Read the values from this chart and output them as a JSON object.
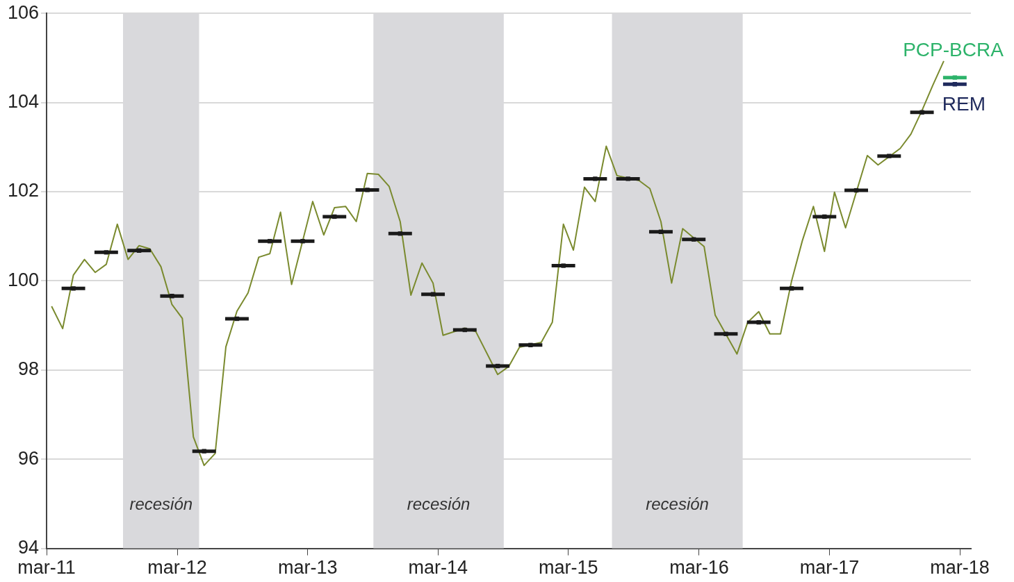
{
  "chart_data": {
    "type": "line",
    "xlim": [
      "2011-03",
      "2018-04"
    ],
    "xticks": [
      {
        "value": "2011-03",
        "label": "mar-11"
      },
      {
        "value": "2012-03",
        "label": "mar-12"
      },
      {
        "value": "2013-03",
        "label": "mar-13"
      },
      {
        "value": "2014-03",
        "label": "mar-14"
      },
      {
        "value": "2015-03",
        "label": "mar-15"
      },
      {
        "value": "2016-03",
        "label": "mar-16"
      },
      {
        "value": "2017-03",
        "label": "mar-17"
      },
      {
        "value": "2018-03",
        "label": "mar-18"
      }
    ],
    "ylim": [
      94,
      106
    ],
    "yticks": [
      94,
      96,
      98,
      100,
      102,
      104,
      106
    ],
    "grid": "y",
    "legend": false,
    "bands": [
      {
        "axis": "x",
        "from": "2011-10",
        "to": "2012-05",
        "label": "recesión",
        "color": "#d9d9dc"
      },
      {
        "axis": "x",
        "from": "2013-09",
        "to": "2014-09",
        "label": "recesión",
        "color": "#d9d9dc"
      },
      {
        "axis": "x",
        "from": "2015-07",
        "to": "2016-07",
        "label": "recesión",
        "color": "#d9d9dc"
      }
    ],
    "series": [
      {
        "color": "#7a8a2e",
        "marker": "none",
        "x": [
          "2011-03-15",
          "2011-04-15",
          "2011-05-15",
          "2011-06-15",
          "2011-07-15",
          "2011-08-15",
          "2011-09-15",
          "2011-10-15",
          "2011-11-15",
          "2011-12-15",
          "2012-01-15",
          "2012-02-15",
          "2012-03-15",
          "2012-04-15",
          "2012-05-15",
          "2012-06-15",
          "2012-07-15",
          "2012-08-15",
          "2012-09-15",
          "2012-10-15",
          "2012-11-15",
          "2012-12-15",
          "2013-01-15",
          "2013-03-15",
          "2013-04-15",
          "2013-05-15",
          "2013-06-15",
          "2013-07-15",
          "2013-08-15",
          "2013-09-15",
          "2013-10-15",
          "2013-11-15",
          "2013-12-15",
          "2014-01-15",
          "2014-02-15",
          "2014-03-15",
          "2014-05-15",
          "2014-06-15",
          "2014-08-15",
          "2014-09-15",
          "2014-10-15",
          "2014-12-15",
          "2015-01-15",
          "2015-02-15",
          "2015-03-15",
          "2015-04-15",
          "2015-05-15",
          "2015-06-15",
          "2015-07-15",
          "2015-09-15",
          "2015-10-15",
          "2015-11-15",
          "2015-12-15",
          "2016-01-15",
          "2016-03-15",
          "2016-04-15",
          "2016-06-15",
          "2016-07-15",
          "2016-08-15",
          "2016-09-15",
          "2016-10-15",
          "2016-11-15",
          "2016-12-15",
          "2017-01-15",
          "2017-02-15",
          "2017-03-15",
          "2017-04-15",
          "2017-06-15",
          "2017-07-15",
          "2017-09-15",
          "2017-10-15",
          "2017-11-15",
          "2017-12-15",
          "2018-01-15"
        ],
        "values": [
          99.43,
          98.93,
          100.13,
          100.48,
          100.19,
          100.37,
          101.27,
          100.48,
          100.79,
          100.72,
          100.32,
          99.47,
          99.16,
          96.5,
          95.86,
          96.13,
          98.52,
          99.32,
          99.73,
          100.53,
          100.61,
          101.54,
          99.92,
          101.78,
          101.03,
          101.64,
          101.67,
          101.33,
          102.41,
          102.39,
          102.12,
          101.33,
          99.68,
          100.4,
          99.95,
          98.78,
          98.94,
          98.86,
          97.9,
          98.08,
          98.51,
          98.62,
          99.07,
          101.27,
          100.69,
          102.1,
          101.78,
          103.02,
          102.36,
          102.25,
          102.07,
          101.33,
          99.95,
          101.17,
          100.77,
          99.23,
          98.36,
          99.07,
          99.31,
          98.81,
          98.81,
          100.0,
          100.9,
          101.67,
          100.66,
          101.99,
          101.19,
          102.81,
          102.6,
          102.97,
          103.29,
          103.82,
          104.38,
          104.93
        ]
      },
      {
        "type": "scatter",
        "color": "#1a1a1a",
        "marker": "square",
        "xerrors": [
          33,
          33,
          33,
          33,
          33,
          33,
          33,
          33,
          33,
          33,
          33,
          33,
          33,
          33,
          33,
          33,
          33,
          33,
          33,
          33,
          33,
          33,
          33,
          33,
          33,
          33,
          33
        ],
        "x": [
          "2011-05-15",
          "2011-08-15",
          "2011-11-15",
          "2012-02-15",
          "2012-05-15",
          "2012-08-15",
          "2012-11-15",
          "2013-02-15",
          "2013-05-15",
          "2013-08-15",
          "2013-11-15",
          "2014-02-15",
          "2014-05-15",
          "2014-08-15",
          "2014-11-15",
          "2015-02-15",
          "2015-05-15",
          "2015-08-15",
          "2015-11-15",
          "2016-02-15",
          "2016-05-15",
          "2016-08-15",
          "2016-11-15",
          "2017-02-15",
          "2017-05-15",
          "2017-08-15",
          "2017-11-15"
        ],
        "values": [
          99.83,
          100.64,
          100.68,
          99.66,
          96.18,
          99.15,
          100.89,
          100.89,
          101.44,
          102.04,
          101.06,
          99.7,
          98.9,
          98.09,
          98.56,
          100.34,
          102.29,
          102.29,
          101.1,
          100.93,
          98.81,
          99.07,
          99.83,
          101.44,
          102.03,
          102.8,
          103.78
        ]
      },
      {
        "type": "scatter",
        "name": "PCP-BCRA",
        "color": "#2db36a",
        "marker": "square",
        "xerrors": [
          33
        ],
        "x": [
          "2018-02-15"
        ],
        "values": [
          104.56
        ]
      },
      {
        "type": "scatter",
        "name": "REM",
        "color": "#1f2a5c",
        "marker": "square",
        "xerrors": [
          33
        ],
        "x": [
          "2018-02-15"
        ],
        "values": [
          104.41
        ]
      }
    ]
  }
}
